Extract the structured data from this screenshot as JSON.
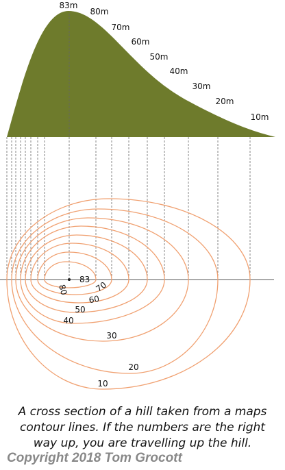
{
  "profile": {
    "labels": [
      "83m",
      "80m",
      "70m",
      "60m",
      "50m",
      "40m",
      "30m",
      "20m",
      "10m"
    ]
  },
  "contours": {
    "labels": [
      "83",
      "80",
      "70",
      "60",
      "50",
      "40",
      "30",
      "20",
      "10"
    ]
  },
  "caption": {
    "lines": [
      "A cross section of a hill taken from a maps",
      "contour lines. If the numbers are the right",
      "way up, you are travelling up the hill."
    ]
  },
  "copyright": "Copyright 2018 Tom Grocott"
}
